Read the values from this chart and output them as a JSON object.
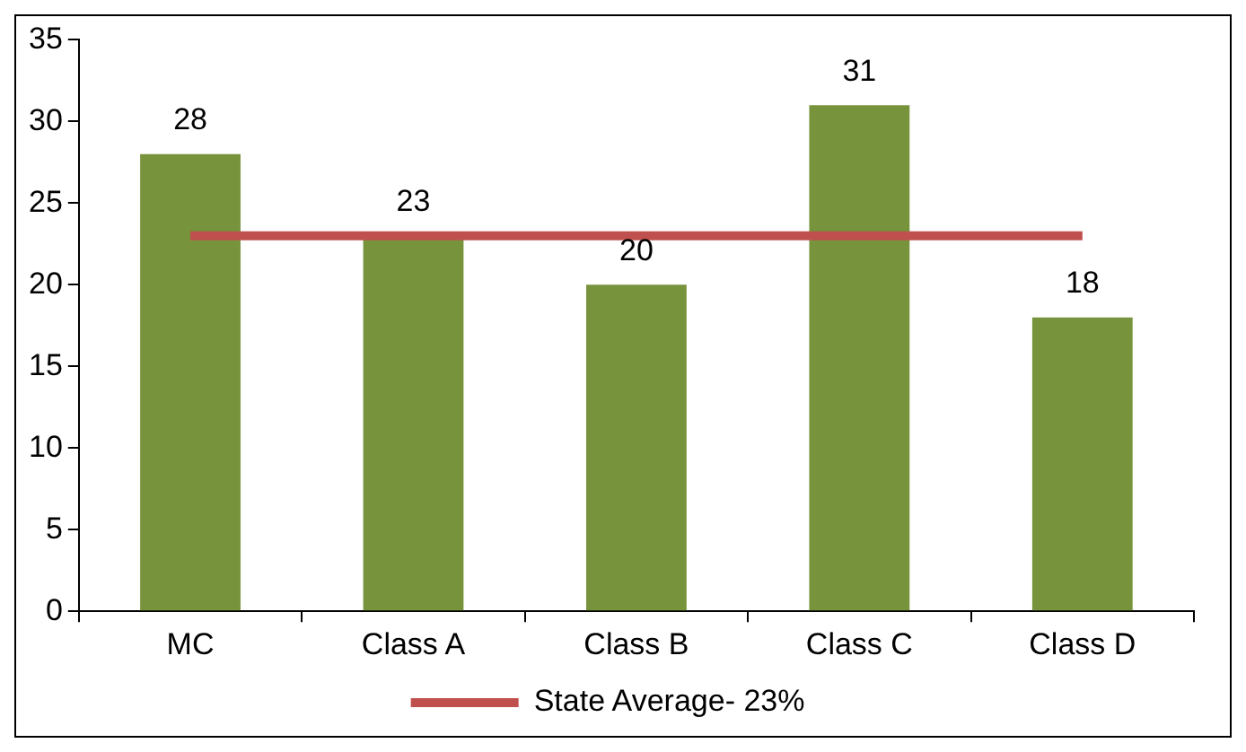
{
  "chart_data": {
    "type": "bar",
    "categories": [
      "MC",
      "Class A",
      "Class B",
      "Class C",
      "Class D"
    ],
    "series": [
      {
        "color": "#77933c",
        "values": [
          28,
          23,
          20,
          31,
          18
        ],
        "value_labels": [
          "28",
          "23",
          "20",
          "31",
          "18"
        ]
      },
      {
        "type": "line",
        "name": "State Average- 23%",
        "color": "#c0504d",
        "values": [
          23,
          23,
          23,
          23,
          23
        ]
      }
    ],
    "ylim": [
      0,
      35
    ],
    "yticks": [
      0,
      5,
      10,
      15,
      20,
      25,
      30,
      35
    ],
    "grid": false,
    "legend": "bottom"
  }
}
